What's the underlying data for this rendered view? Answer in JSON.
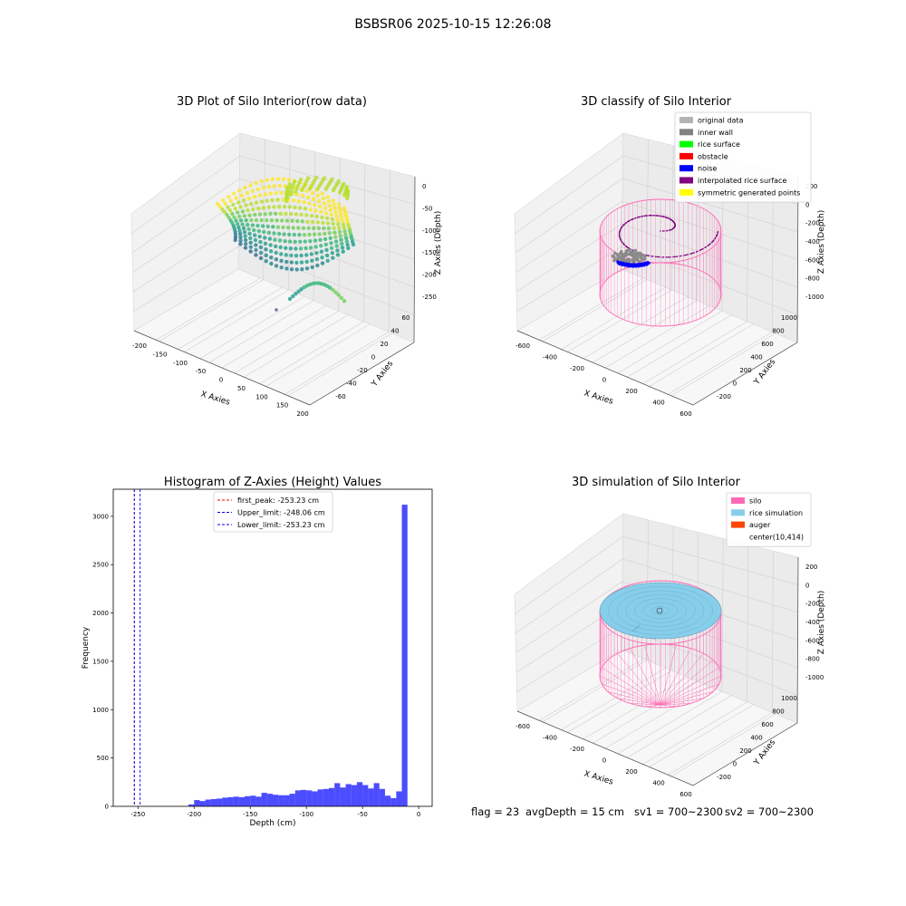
{
  "suptitle": "BSBSR06 2025-10-15 12:26:08",
  "panels": {
    "raw": {
      "title": "3D Plot of Silo Interior(row data)",
      "xlabel": "X Axies",
      "ylabel": "Y Axies",
      "zlabel": "Z Axies (Depth)",
      "xticks": [
        "-200",
        "-150",
        "-100",
        "-50",
        "0",
        "50",
        "100",
        "150",
        "200"
      ],
      "yticks": [
        "-60",
        "-40",
        "-20",
        "0",
        "20",
        "40",
        "60"
      ],
      "zticks": [
        "0",
        "-50",
        "-100",
        "-150",
        "-200",
        "-250"
      ]
    },
    "classify": {
      "title": "3D classify of Silo Interior",
      "xlabel": "X Axies",
      "ylabel": "Y Axies",
      "zlabel": "Z Axies (Depth)",
      "xticks": [
        "-600",
        "-400",
        "-200",
        "0",
        "200",
        "400",
        "600"
      ],
      "yticks": [
        "-200",
        "0",
        "200",
        "400",
        "600",
        "800",
        "1000"
      ],
      "zticks": [
        "200",
        "0",
        "-200",
        "-400",
        "-600",
        "-800",
        "-1000"
      ],
      "legend": [
        {
          "label": "original data",
          "color": "#b3b3b3"
        },
        {
          "label": "inner wall",
          "color": "#808080"
        },
        {
          "label": "rice surface",
          "color": "#00ff00"
        },
        {
          "label": "obstacle",
          "color": "#ff0000"
        },
        {
          "label": "noise",
          "color": "#0000ff"
        },
        {
          "label": "interpolated rice surface",
          "color": "#800080"
        },
        {
          "label": "symmetric generated points",
          "color": "#ffff00"
        }
      ]
    },
    "simulation": {
      "title": "3D simulation of Silo Interior",
      "xlabel": "X Axies",
      "ylabel": "Y Axies",
      "zlabel": "Z Axies (Depth)",
      "xticks": [
        "-600",
        "-400",
        "-200",
        "0",
        "200",
        "400",
        "600"
      ],
      "yticks": [
        "-200",
        "0",
        "200",
        "400",
        "600",
        "800",
        "1000"
      ],
      "zticks": [
        "200",
        "0",
        "-200",
        "-400",
        "-600",
        "-800",
        "-1000"
      ],
      "legend": [
        {
          "label": "silo",
          "color": "#ff69b4"
        },
        {
          "label": "rice simulation",
          "color": "#87ceeb"
        },
        {
          "label": "auger",
          "color": "#ff4500"
        },
        {
          "label": "center(10,414)",
          "color": ""
        }
      ]
    }
  },
  "chart_data": {
    "type": "bar",
    "title": "Histogram of Z-Axies (Height) Values",
    "xlabel": "Depth (cm)",
    "ylabel": "Frequency",
    "xlim": [
      -272,
      12
    ],
    "ylim": [
      0,
      3280
    ],
    "xticks": [
      -250,
      -200,
      -150,
      -100,
      -50,
      0
    ],
    "yticks": [
      0,
      500,
      1000,
      1500,
      2000,
      2500,
      3000
    ],
    "bar_color": "#0000ff",
    "bin_width": 5,
    "bins_start": [
      -205,
      -200,
      -195,
      -190,
      -185,
      -180,
      -175,
      -170,
      -165,
      -160,
      -155,
      -150,
      -145,
      -140,
      -135,
      -130,
      -125,
      -120,
      -115,
      -110,
      -105,
      -100,
      -95,
      -90,
      -85,
      -80,
      -75,
      -70,
      -65,
      -60,
      -55,
      -50,
      -45,
      -40,
      -35,
      -30,
      -25,
      -20,
      -15,
      -10,
      -5
    ],
    "values": [
      20,
      65,
      55,
      70,
      75,
      80,
      90,
      95,
      100,
      95,
      105,
      110,
      100,
      140,
      130,
      120,
      115,
      115,
      130,
      165,
      170,
      165,
      155,
      175,
      180,
      190,
      240,
      195,
      230,
      220,
      250,
      220,
      185,
      240,
      180,
      110,
      85,
      155,
      3120,
      0,
      0
    ],
    "lines": [
      {
        "label": "first_peak: -253.23 cm",
        "x": -253.23,
        "color": "#ff0000"
      },
      {
        "label": "Upper_limit: -248.06 cm",
        "x": -248.06,
        "color": "#0000ff"
      },
      {
        "label": "Lower_limit: -253.23 cm",
        "x": -253.23,
        "color": "#0000ff"
      }
    ]
  },
  "footer": {
    "flag": "flag = 23",
    "avg": "avgDepth = 15 cm",
    "sv1": "sv1 = 700~2300",
    "sv2": "sv2 = 700~2300"
  }
}
